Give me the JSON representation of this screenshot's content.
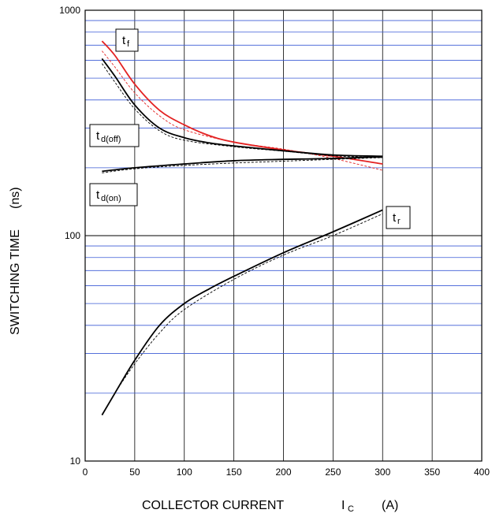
{
  "chart_data": {
    "type": "line",
    "xlabel": "COLLECTOR CURRENT",
    "xlabel_symbol": "I",
    "xlabel_symbol_sub": "C",
    "xlabel_unit": "(A)",
    "ylabel": "SWITCHING TIME",
    "ylabel_unit": "(ns)",
    "xlim": [
      0,
      400
    ],
    "ylim": [
      10,
      1000
    ],
    "yscale": "log",
    "grid": true,
    "x_ticks": [
      "0",
      "50",
      "100",
      "150",
      "200",
      "250",
      "300",
      "350",
      "400"
    ],
    "y_ticks": [
      "10",
      "100",
      "1000"
    ],
    "colors": {
      "black": "#000000",
      "red": "#e32222",
      "minor_grid": "#3b5bd6",
      "major_grid": "#000000"
    },
    "series": [
      {
        "name": "f",
        "label_main": "t",
        "label_sub": "f",
        "color": "#e32222",
        "dashed": false,
        "x": [
          17,
          30,
          50,
          75,
          100,
          125,
          150,
          200,
          250,
          300
        ],
        "y": [
          730,
          630,
          470,
          360,
          310,
          278,
          260,
          240,
          225,
          208
        ]
      },
      {
        "name": "f",
        "label_main": "t",
        "label_sub": "f",
        "color": "#e32222",
        "dashed": true,
        "x": [
          17,
          30,
          50,
          75,
          100,
          150,
          200,
          250,
          300
        ],
        "y": [
          660,
          560,
          430,
          340,
          295,
          260,
          242,
          220,
          195
        ]
      },
      {
        "name": "d(off)",
        "label_main": "t",
        "label_sub": "d(off)",
        "color": "#000000",
        "dashed": false,
        "x": [
          17,
          30,
          50,
          75,
          100,
          125,
          150,
          200,
          250,
          300
        ],
        "y": [
          610,
          510,
          380,
          300,
          272,
          258,
          250,
          238,
          228,
          225
        ]
      },
      {
        "name": "d(off)",
        "label_main": "t",
        "label_sub": "d(off)",
        "color": "#000000",
        "dashed": true,
        "x": [
          17,
          30,
          50,
          75,
          100,
          150,
          200,
          250,
          300
        ],
        "y": [
          580,
          480,
          365,
          292,
          265,
          248,
          237,
          226,
          222
        ]
      },
      {
        "name": "d(on)",
        "label_main": "t",
        "label_sub": "d(on)",
        "color": "#000000",
        "dashed": false,
        "x": [
          17,
          50,
          100,
          150,
          200,
          250,
          300
        ],
        "y": [
          193,
          200,
          208,
          215,
          218,
          220,
          224
        ]
      },
      {
        "name": "d(on)",
        "label_main": "t",
        "label_sub": "d(on)",
        "color": "#000000",
        "dashed": true,
        "x": [
          17,
          50,
          100,
          150,
          200,
          250,
          300
        ],
        "y": [
          190,
          198,
          205,
          210,
          214,
          218,
          222
        ]
      },
      {
        "name": "r",
        "label_main": "t",
        "label_sub": "r",
        "color": "#000000",
        "dashed": false,
        "x": [
          17,
          30,
          50,
          75,
          100,
          125,
          150,
          200,
          250,
          300
        ],
        "y": [
          16,
          20,
          28,
          40,
          50,
          58,
          66,
          84,
          104,
          130
        ]
      },
      {
        "name": "r",
        "label_main": "t",
        "label_sub": "r",
        "color": "#000000",
        "dashed": true,
        "x": [
          17,
          30,
          50,
          75,
          100,
          150,
          200,
          250,
          300
        ],
        "y": [
          16,
          20,
          27,
          37,
          47,
          64,
          82,
          100,
          125
        ]
      }
    ]
  }
}
